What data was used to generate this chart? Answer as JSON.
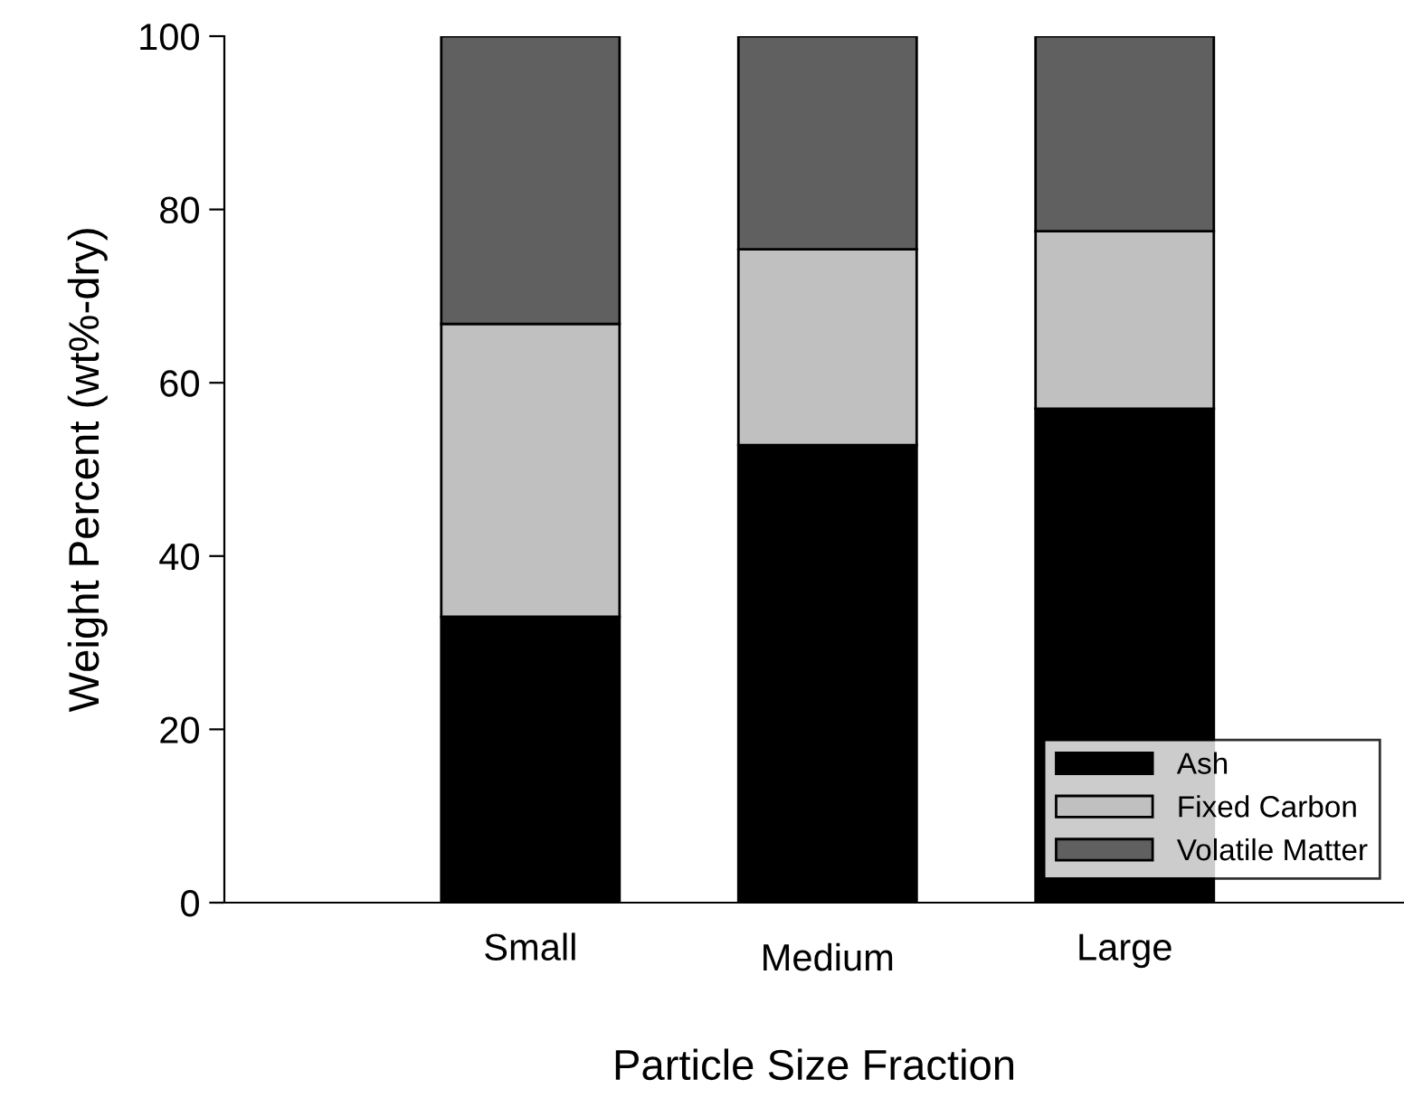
{
  "chart_data": {
    "type": "bar",
    "stacked": true,
    "xlabel": "Particle Size Fraction",
    "ylabel": "Weight Percent (wt%-dry)",
    "categories": [
      "Small",
      "Medium",
      "Large"
    ],
    "series": [
      {
        "name": "Ash",
        "color": "#000000",
        "values": [
          33.0,
          52.8,
          57.0
        ]
      },
      {
        "name": "Fixed Carbon",
        "color": "#c0c0c0",
        "values": [
          33.8,
          22.6,
          20.5
        ]
      },
      {
        "name": "Volatile Matter",
        "color": "#606060",
        "values": [
          33.2,
          24.6,
          22.5
        ]
      }
    ],
    "ylim": [
      0,
      100
    ],
    "yticks": [
      0,
      20,
      40,
      60,
      80,
      100
    ],
    "grid": false,
    "legend": "bottom right"
  }
}
